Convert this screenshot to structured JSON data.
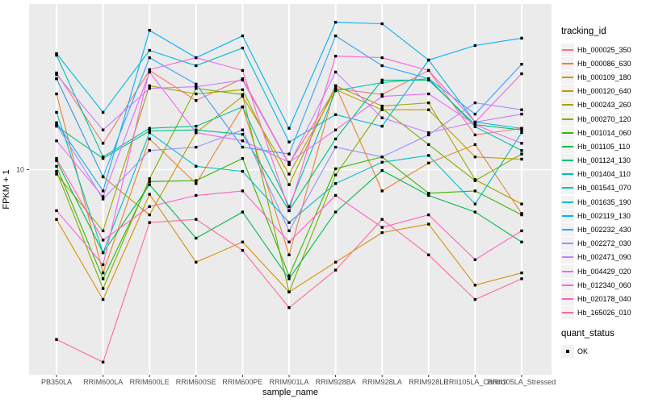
{
  "chart_data": {
    "type": "line",
    "xlabel": "sample_name",
    "ylabel": "FPKM + 1",
    "grid": "major-on-gray-panel",
    "panel_bg": "#EBEBEB",
    "grid_color": "#FFFFFF",
    "tick_label_color": "#4D4D4D",
    "point_color": "#000000",
    "categories": [
      "PB350LA",
      "RRIM600LA",
      "RRIM600LE",
      "RRIM600SE",
      "RRIM600PE",
      "RRIM901LA",
      "RRIM928BA",
      "RRIM928LA",
      "RRIM928LE",
      "RRII105LA_Control",
      "RRII105LA_Stressed"
    ],
    "y_axis": {
      "scale": "log10",
      "ticks": [
        {
          "label": "10",
          "value": 10
        }
      ],
      "approx_range": [
        1,
        69
      ]
    },
    "legend": {
      "tracking_title": "tracking_id",
      "quant_title": "quant_status",
      "quant_label": "OK"
    },
    "series": [
      {
        "name": "Hb_000025_350",
        "color": "#F8766D",
        "values": [
          30.9,
          13.6,
          31.8,
          22.4,
          28.9,
          10.7,
          25.8,
          24.0,
          31.8,
          15.0,
          16.2
        ]
      },
      {
        "name": "Hb_000086_630",
        "color": "#EA8331",
        "values": [
          24.2,
          3.0,
          14.3,
          8.5,
          20.8,
          3.7,
          26.6,
          7.8,
          10.8,
          13.4,
          6.0
        ]
      },
      {
        "name": "Hb_000109_180",
        "color": "#D89000",
        "values": [
          5.6,
          2.2,
          7.5,
          3.4,
          4.3,
          2.4,
          3.4,
          4.8,
          5.3,
          2.6,
          3.0
        ]
      },
      {
        "name": "Hb_000120_640",
        "color": "#C09B00",
        "values": [
          28.9,
          9.2,
          5.9,
          15.4,
          23.5,
          9.5,
          25.4,
          20.1,
          20.1,
          11.6,
          11.3
        ]
      },
      {
        "name": "Hb_000243_260",
        "color": "#A3A500",
        "values": [
          9.5,
          4.9,
          26.6,
          24.2,
          25.4,
          8.4,
          26.6,
          21.0,
          21.8,
          8.9,
          6.7
        ]
      },
      {
        "name": "Hb_000270_120",
        "color": "#7CAE00",
        "values": [
          9.8,
          2.5,
          9.0,
          25.8,
          24.0,
          2.4,
          9.4,
          20.4,
          13.4,
          8.8,
          12.0
        ]
      },
      {
        "name": "Hb_001014_060",
        "color": "#39B600",
        "values": [
          10.4,
          2.8,
          8.7,
          8.8,
          11.4,
          2.9,
          10.1,
          11.6,
          7.6,
          7.8,
          5.9
        ]
      },
      {
        "name": "Hb_001105_110",
        "color": "#00BB4E",
        "values": [
          11.1,
          3.8,
          8.4,
          4.5,
          6.1,
          2.8,
          6.1,
          9.9,
          7.4,
          6.1,
          4.3
        ]
      },
      {
        "name": "Hb_001124_130",
        "color": "#00BF7D",
        "values": [
          16.6,
          11.4,
          15.7,
          15.9,
          15.1,
          6.2,
          14.3,
          28.4,
          28.4,
          16.9,
          15.9
        ]
      },
      {
        "name": "Hb_001404_110",
        "color": "#00C1A3",
        "values": [
          38.0,
          11.6,
          16.2,
          16.6,
          20.8,
          6.5,
          25.1,
          27.6,
          28.9,
          16.5,
          12.5
        ]
      },
      {
        "name": "Hb_001541_070",
        "color": "#00BFC4",
        "values": [
          19.5,
          3.8,
          15.4,
          10.4,
          9.8,
          5.4,
          8.5,
          10.9,
          11.8,
          6.7,
          15.4
        ]
      },
      {
        "name": "Hb_001635_190",
        "color": "#00BAE0",
        "values": [
          38.7,
          19.5,
          40.2,
          33.6,
          41.3,
          13.8,
          19.0,
          16.6,
          35.9,
          17.4,
          16.2
        ]
      },
      {
        "name": "Hb_002119_130",
        "color": "#00B0F6",
        "values": [
          17.3,
          7.8,
          50.8,
          36.9,
          47.6,
          16.2,
          55.8,
          54.8,
          35.9,
          42.5,
          46.3
        ]
      },
      {
        "name": "Hb_002232_430",
        "color": "#35A2FF",
        "values": [
          28.9,
          9.2,
          36.9,
          27.1,
          13.0,
          12.0,
          47.6,
          33.6,
          28.9,
          19.1,
          34.2
        ]
      },
      {
        "name": "Hb_002272_030",
        "color": "#9590FF",
        "values": [
          16.9,
          7.1,
          12.5,
          13.0,
          15.9,
          4.9,
          13.0,
          11.6,
          15.0,
          21.8,
          20.1
        ]
      },
      {
        "name": "Hb_002471_090",
        "color": "#C77CFF",
        "values": [
          30.3,
          15.9,
          25.8,
          26.3,
          28.4,
          10.6,
          31.2,
          18.3,
          15.4,
          17.4,
          19.1
        ]
      },
      {
        "name": "Hb_004429_020",
        "color": "#E76BF3",
        "values": [
          14.0,
          7.3,
          31.2,
          15.4,
          14.0,
          10.9,
          15.9,
          23.5,
          24.2,
          16.9,
          13.6
        ]
      },
      {
        "name": "Hb_012340_060",
        "color": "#FA62DB",
        "values": [
          6.2,
          3.3,
          32.1,
          36.9,
          31.8,
          6.2,
          37.6,
          36.9,
          31.8,
          17.4,
          30.6
        ]
      },
      {
        "name": "Hb_020178_040",
        "color": "#FF62BC",
        "values": [
          11.4,
          4.4,
          6.5,
          7.4,
          7.8,
          4.3,
          7.4,
          5.1,
          5.9,
          3.5,
          4.9
        ]
      },
      {
        "name": "Hb_165026_010",
        "color": "#FF6A98",
        "values": [
          1.38,
          1.06,
          5.4,
          5.6,
          3.9,
          2.0,
          3.1,
          5.6,
          3.7,
          2.2,
          2.8
        ]
      }
    ]
  }
}
